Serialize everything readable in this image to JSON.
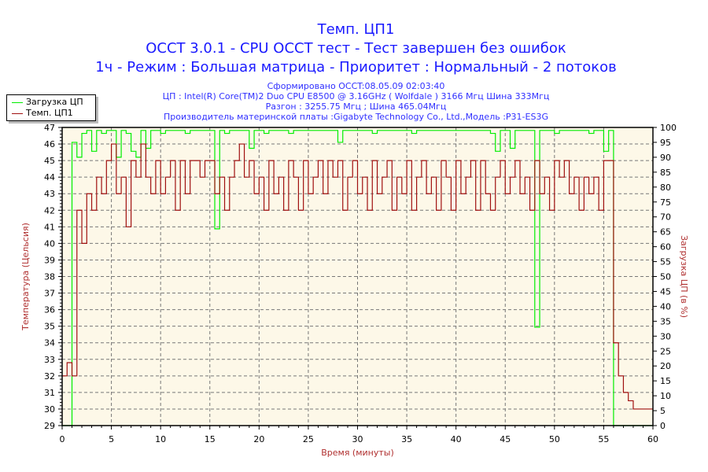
{
  "titles": {
    "line1": "Темп. ЦП1",
    "line2": "OCCT 3.0.1 - CPU OCCT тест - Тест завершен без ошибок",
    "line3": "1ч - Режим : Большая матрица - Приоритет : Нормальный - 2 потоков"
  },
  "info": {
    "generated": "Сформировано OCCT:08.05.09 02:03:40",
    "cpu": "ЦП : Intel(R) Core(TM)2 Duo CPU E8500 @ 3.16GHz ( Wolfdale ) 3166 Мгц Шина 333Мгц",
    "overclock": "Разгон : 3255.75 Мгц ; Шина 465.04Мгц",
    "board": "Производитель материнской платы :Gigabyte Technology Co., Ltd.,Модель :P31-ES3G"
  },
  "colors": {
    "load": "#00ee00",
    "temp": "#a01010",
    "plot_bg": "#fdf8e8",
    "title": "#1a1aff",
    "axis_label": "#b03030"
  },
  "chart_data": {
    "type": "line",
    "xlabel": "Время (минуты)",
    "ylabel": "Температура (Цельсия)",
    "y2label": "Загрузка ЦП (в %)",
    "xlim": [
      0,
      60
    ],
    "ylim": [
      29,
      47
    ],
    "y2lim": [
      0,
      100
    ],
    "xticks": [
      0,
      5,
      10,
      15,
      20,
      25,
      30,
      35,
      40,
      45,
      50,
      55,
      60
    ],
    "yticks": [
      29,
      30,
      31,
      32,
      33,
      34,
      35,
      36,
      37,
      38,
      39,
      40,
      41,
      42,
      43,
      44,
      45,
      46,
      47
    ],
    "y2ticks": [
      0,
      5,
      10,
      15,
      20,
      25,
      30,
      35,
      40,
      45,
      50,
      55,
      60,
      65,
      70,
      75,
      80,
      85,
      90,
      95,
      100
    ],
    "grid": true,
    "legend_placement": "top-left",
    "x_step": 0.5,
    "series": [
      {
        "name": "Загрузка ЦП",
        "axis": "right",
        "values": [
          0,
          0,
          95,
          90,
          98,
          99,
          92,
          99,
          98,
          99,
          99,
          90,
          99,
          98,
          92,
          90,
          99,
          93,
          99,
          99,
          98,
          99,
          99,
          99,
          99,
          98,
          99,
          99,
          99,
          99,
          99,
          66,
          99,
          98,
          99,
          99,
          99,
          99,
          93,
          99,
          99,
          98,
          99,
          99,
          99,
          99,
          98,
          99,
          99,
          99,
          99,
          99,
          99,
          99,
          99,
          99,
          95,
          99,
          99,
          99,
          99,
          99,
          99,
          98,
          99,
          99,
          99,
          99,
          99,
          99,
          99,
          98,
          99,
          99,
          99,
          99,
          99,
          99,
          99,
          99,
          99,
          99,
          99,
          99,
          99,
          99,
          99,
          98,
          92,
          99,
          99,
          93,
          99,
          99,
          99,
          99,
          33,
          99,
          99,
          99,
          98,
          99,
          99,
          99,
          99,
          99,
          99,
          98,
          99,
          99,
          92,
          99,
          0,
          0,
          0,
          0,
          0,
          0,
          0,
          0,
          0
        ]
      },
      {
        "name": "Темп. ЦП1",
        "axis": "left",
        "values": [
          32,
          32.8,
          32,
          42,
          40,
          43,
          42,
          44,
          43,
          45,
          46,
          43,
          44,
          41,
          45,
          44,
          46,
          44,
          43,
          45,
          43,
          44,
          45,
          42,
          45,
          43,
          45,
          45,
          44,
          45,
          45,
          43,
          44,
          42,
          44,
          45,
          46,
          44,
          45,
          43,
          44,
          42,
          45,
          43,
          44,
          42,
          45,
          44,
          42,
          45,
          43,
          44,
          45,
          43,
          45,
          44,
          45,
          42,
          44,
          45,
          43,
          44,
          42,
          45,
          43,
          44,
          45,
          42,
          44,
          43,
          45,
          42,
          44,
          45,
          43,
          44,
          42,
          45,
          44,
          42,
          45,
          43,
          44,
          45,
          42,
          45,
          43,
          42,
          44,
          45,
          43,
          44,
          45,
          43,
          44,
          42,
          45,
          43,
          44,
          42,
          45,
          44,
          45,
          43,
          44,
          42,
          44,
          43,
          44,
          42,
          45,
          45,
          34,
          32,
          31,
          30.5,
          30,
          30,
          30,
          30,
          30
        ]
      }
    ]
  }
}
